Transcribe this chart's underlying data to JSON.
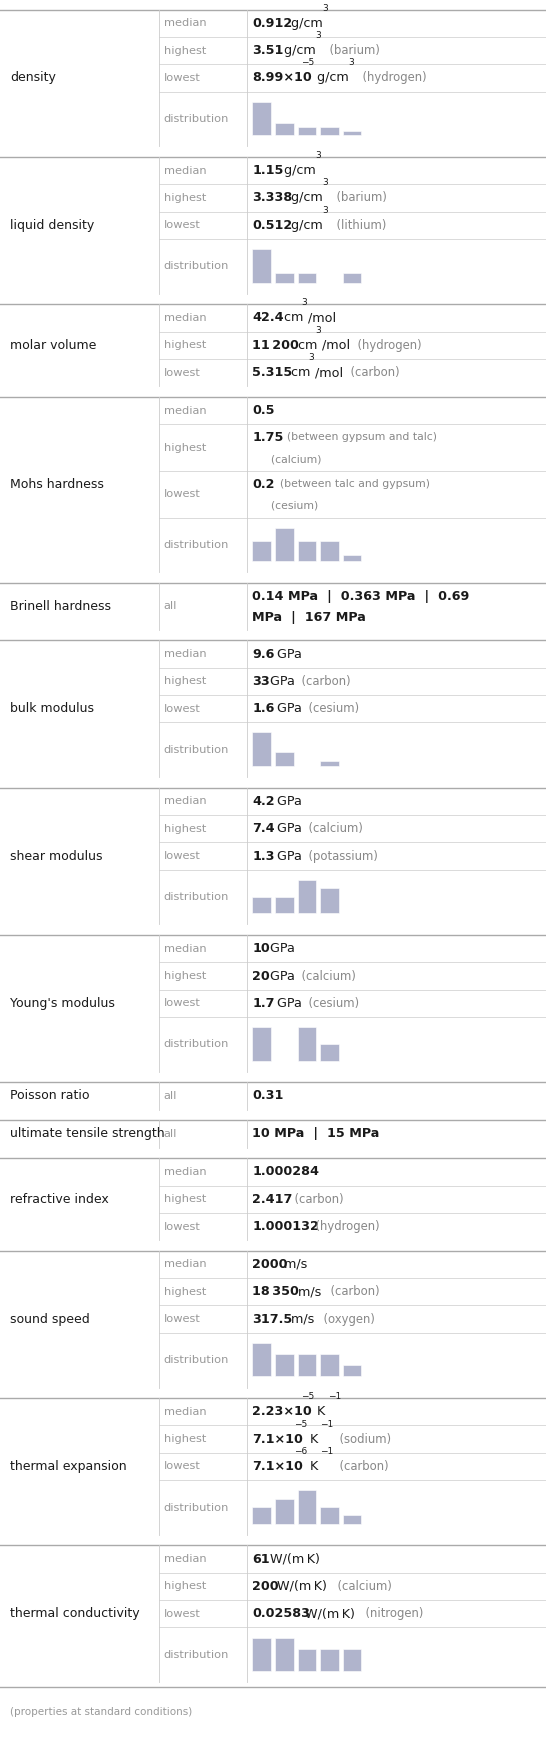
{
  "sections": [
    {
      "property": "density",
      "rows": [
        {
          "label": "median",
          "type": "text",
          "bold": "0.912",
          "normal": " g/cm",
          "sup": "3"
        },
        {
          "label": "highest",
          "type": "text",
          "bold": "3.51",
          "normal": " g/cm",
          "sup": "3",
          "extra": "  (barium)"
        },
        {
          "label": "lowest",
          "type": "text",
          "bold": "8.99×10",
          "sup2": "−5",
          "normal": " g/cm",
          "sup": "3",
          "extra": "  (hydrogen)"
        },
        {
          "label": "distribution",
          "type": "hist",
          "bars": [
            8,
            3,
            2,
            2,
            1
          ]
        }
      ]
    },
    {
      "property": "liquid density",
      "rows": [
        {
          "label": "median",
          "type": "text",
          "bold": "1.15",
          "normal": " g/cm",
          "sup": "3"
        },
        {
          "label": "highest",
          "type": "text",
          "bold": "3.338",
          "normal": " g/cm",
          "sup": "3",
          "extra": "  (barium)"
        },
        {
          "label": "lowest",
          "type": "text",
          "bold": "0.512",
          "normal": " g/cm",
          "sup": "3",
          "extra": "  (lithium)"
        },
        {
          "label": "distribution",
          "type": "hist",
          "bars": [
            7,
            2,
            2,
            0,
            2
          ]
        }
      ]
    },
    {
      "property": "molar volume",
      "rows": [
        {
          "label": "median",
          "type": "text",
          "bold": "42.4",
          "normal": " cm",
          "sup": "3",
          "normal2": "/mol"
        },
        {
          "label": "highest",
          "type": "text",
          "bold": "11 200",
          "normal": " cm",
          "sup": "3",
          "normal2": "/mol",
          "extra": "  (hydrogen)"
        },
        {
          "label": "lowest",
          "type": "text",
          "bold": "5.315",
          "normal": " cm",
          "sup": "3",
          "normal2": "/mol",
          "extra": "  (carbon)"
        }
      ]
    },
    {
      "property": "Mohs hardness",
      "rows": [
        {
          "label": "median",
          "type": "text",
          "bold": "0.5",
          "normal": ""
        },
        {
          "label": "highest",
          "type": "text_ml",
          "bold": "1.75",
          "small": "  (between gypsum and talc)",
          "line2": "  (calcium)"
        },
        {
          "label": "lowest",
          "type": "text_ml",
          "bold": "0.2",
          "small": "  (between talc and gypsum)",
          "line2": "  (cesium)"
        },
        {
          "label": "distribution",
          "type": "hist",
          "bars": [
            3,
            5,
            3,
            3,
            1
          ]
        }
      ]
    },
    {
      "property": "Brinell hardness",
      "rows": [
        {
          "label": "all",
          "type": "text_raw",
          "line1": "0.14 MPa  |  0.363 MPa  |  0.69",
          "line2": "MPa  |  167 MPa"
        }
      ]
    },
    {
      "property": "bulk modulus",
      "rows": [
        {
          "label": "median",
          "type": "text",
          "bold": "9.6",
          "normal": " GPa"
        },
        {
          "label": "highest",
          "type": "text",
          "bold": "33",
          "normal": " GPa",
          "extra": "  (carbon)"
        },
        {
          "label": "lowest",
          "type": "text",
          "bold": "1.6",
          "normal": " GPa",
          "extra": "  (cesium)"
        },
        {
          "label": "distribution",
          "type": "hist",
          "bars": [
            7,
            3,
            0,
            1,
            0
          ]
        }
      ]
    },
    {
      "property": "shear modulus",
      "rows": [
        {
          "label": "median",
          "type": "text",
          "bold": "4.2",
          "normal": " GPa"
        },
        {
          "label": "highest",
          "type": "text",
          "bold": "7.4",
          "normal": " GPa",
          "extra": "  (calcium)"
        },
        {
          "label": "lowest",
          "type": "text",
          "bold": "1.3",
          "normal": " GPa",
          "extra": "  (potassium)"
        },
        {
          "label": "distribution",
          "type": "hist",
          "bars": [
            2,
            2,
            4,
            3,
            0
          ]
        }
      ]
    },
    {
      "property": "Young's modulus",
      "rows": [
        {
          "label": "median",
          "type": "text",
          "bold": "10",
          "normal": " GPa"
        },
        {
          "label": "highest",
          "type": "text",
          "bold": "20",
          "normal": " GPa",
          "extra": "  (calcium)"
        },
        {
          "label": "lowest",
          "type": "text",
          "bold": "1.7",
          "normal": " GPa",
          "extra": "  (cesium)"
        },
        {
          "label": "distribution",
          "type": "hist",
          "bars": [
            4,
            0,
            4,
            2,
            0
          ]
        }
      ]
    },
    {
      "property": "Poisson ratio",
      "rows": [
        {
          "label": "all",
          "type": "text_raw",
          "line1": "0.31"
        }
      ]
    },
    {
      "property": "ultimate tensile strength",
      "rows": [
        {
          "label": "all",
          "type": "text_raw",
          "line1": "10 MPa  |  15 MPa"
        }
      ]
    },
    {
      "property": "refractive index",
      "rows": [
        {
          "label": "median",
          "type": "text",
          "bold": "1.000284",
          "normal": ""
        },
        {
          "label": "highest",
          "type": "text",
          "bold": "2.417",
          "normal": "",
          "extra": "  (carbon)"
        },
        {
          "label": "lowest",
          "type": "text",
          "bold": "1.000132",
          "normal": "",
          "extra": "  (hydrogen)"
        }
      ]
    },
    {
      "property": "sound speed",
      "rows": [
        {
          "label": "median",
          "type": "text",
          "bold": "2000",
          "normal": " m/s"
        },
        {
          "label": "highest",
          "type": "text",
          "bold": "18 350",
          "normal": " m/s",
          "extra": "  (carbon)"
        },
        {
          "label": "lowest",
          "type": "text",
          "bold": "317.5",
          "normal": " m/s",
          "extra": "  (oxygen)"
        },
        {
          "label": "distribution",
          "type": "hist",
          "bars": [
            3,
            2,
            2,
            2,
            1
          ]
        }
      ]
    },
    {
      "property": "thermal expansion",
      "rows": [
        {
          "label": "median",
          "type": "text",
          "bold": "2.23×10",
          "sup2": "−5",
          "normal": " K",
          "sup": "−1"
        },
        {
          "label": "highest",
          "type": "text",
          "bold": "7.1×10",
          "sup2": "−5",
          "normal": " K",
          "sup": "−1",
          "extra": "  (sodium)"
        },
        {
          "label": "lowest",
          "type": "text",
          "bold": "7.1×10",
          "sup2": "−6",
          "normal": " K",
          "sup": "−1",
          "extra": "  (carbon)"
        },
        {
          "label": "distribution",
          "type": "hist",
          "bars": [
            2,
            3,
            4,
            2,
            1
          ]
        }
      ]
    },
    {
      "property": "thermal conductivity",
      "rows": [
        {
          "label": "median",
          "type": "text",
          "bold": "61",
          "normal": " W/(m K)"
        },
        {
          "label": "highest",
          "type": "text",
          "bold": "200",
          "normal": " W/(m K)",
          "extra": "  (calcium)"
        },
        {
          "label": "lowest",
          "type": "text",
          "bold": "0.02583",
          "normal": " W/(m K)",
          "extra": "  (nitrogen)"
        },
        {
          "label": "distribution",
          "type": "hist",
          "bars": [
            3,
            3,
            2,
            2,
            2
          ]
        }
      ]
    }
  ],
  "footer": "(properties at standard conditions)",
  "hist_color": "#b0b4cc",
  "text_dark": "#1a1a1a",
  "text_mid": "#999999",
  "text_small": "#888888",
  "border_color": "#cccccc",
  "section_border_color": "#aaaaaa",
  "bg": "#ffffff"
}
